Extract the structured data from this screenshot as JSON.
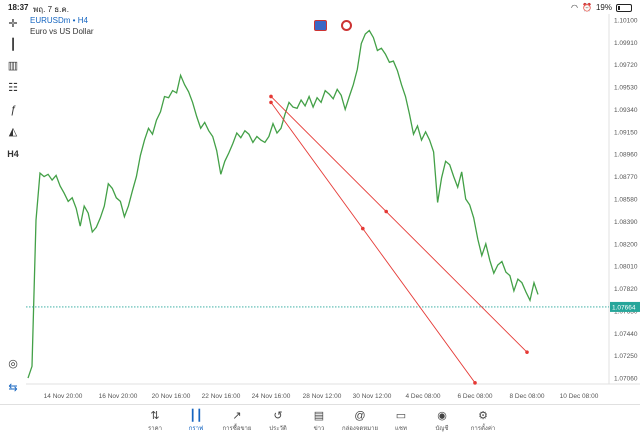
{
  "status": {
    "time": "18:37",
    "date": "พฤ. 7 ธ.ค.",
    "battery": "19%"
  },
  "toolbar": {
    "timeframe": "H4"
  },
  "symbol": {
    "name": "EURUSDm • H4",
    "description": "Euro vs US Dollar"
  },
  "current_price": "1.07664",
  "chart_data": {
    "type": "line",
    "x_labels": [
      "14 Nov 20:00",
      "16 Nov 20:00",
      "20 Nov 16:00",
      "22 Nov 16:00",
      "24 Nov 16:00",
      "28 Nov 12:00",
      "30 Nov 12:00",
      "4 Dec 08:00",
      "6 Dec 08:00",
      "8 Dec 08:00",
      "10 Dec 08:00"
    ],
    "y_ticks": [
      1.101,
      1.0991,
      1.0972,
      1.0953,
      1.0934,
      1.0915,
      1.0896,
      1.0877,
      1.0858,
      1.0839,
      1.082,
      1.0801,
      1.0782,
      1.0763,
      1.0744,
      1.0725,
      1.0706
    ],
    "ylim": [
      1.0701,
      1.1015
    ],
    "series": [
      {
        "values": [
          1.0706,
          1.0716,
          1.084,
          1.088,
          1.0877,
          1.0879,
          1.0874,
          1.0878,
          1.0869,
          1.0863,
          1.0856,
          1.0859,
          1.085,
          1.0835,
          1.0852,
          1.0846,
          1.083,
          1.0834,
          1.0842,
          1.0852,
          1.0871,
          1.0867,
          1.0859,
          1.0856,
          1.0843,
          1.0852,
          1.0865,
          1.0877,
          1.0895,
          1.0908,
          1.0918,
          1.0913,
          1.0925,
          1.0932,
          1.0945,
          1.0944,
          1.095,
          1.0948,
          1.0963,
          1.0955,
          1.0949,
          1.094,
          1.0928,
          1.0918,
          1.0923,
          1.0916,
          1.0911,
          1.0899,
          1.0879,
          1.089,
          1.0897,
          1.0905,
          1.0914,
          1.091,
          1.0916,
          1.0913,
          1.0906,
          1.0911,
          1.0908,
          1.0906,
          1.0911,
          1.0922,
          1.0914,
          1.0918,
          1.093,
          1.094,
          1.0936,
          1.0935,
          1.0942,
          1.0937,
          1.0945,
          1.0936,
          1.0944,
          1.094,
          1.095,
          1.0947,
          1.0943,
          1.0951,
          1.0946,
          1.0934,
          1.0945,
          1.0955,
          1.0968,
          1.099,
          1.0998,
          1.1001,
          1.0995,
          1.0984,
          1.0986,
          1.0981,
          1.0974,
          1.0975,
          1.0967,
          1.0955,
          1.0945,
          1.093,
          1.0913,
          1.092,
          1.0908,
          1.0915,
          1.0908,
          1.0898,
          1.0855,
          1.0876,
          1.089,
          1.0887,
          1.0877,
          1.0868,
          1.0881,
          1.0858,
          1.0853,
          1.0842,
          1.0824,
          1.081,
          1.082,
          1.0806,
          1.0795,
          1.0802,
          1.0805,
          1.0796,
          1.0793,
          1.078,
          1.079,
          1.0787,
          1.0779,
          1.0772,
          1.0787,
          1.0777
        ]
      }
    ],
    "drawings": [
      {
        "type": "line",
        "color": "#e53935",
        "points": [
          [
            "24 Nov 16:00",
            1.094
          ],
          [
            "6 Dec 08:00",
            1.0702
          ]
        ]
      },
      {
        "type": "line",
        "color": "#e53935",
        "points": [
          [
            "24 Nov 16:00",
            1.0945
          ],
          [
            "8 Dec 08:00",
            1.0728
          ]
        ]
      }
    ],
    "current_price_line": 1.07664,
    "current_price_color": "#26a69a",
    "line_color": "#43a047"
  },
  "nav": [
    {
      "label": "ราคา",
      "icon": "arrows-updown-icon"
    },
    {
      "label": "กราฟ",
      "icon": "candles-icon"
    },
    {
      "label": "การซื้อขาย",
      "icon": "trend-icon"
    },
    {
      "label": "ประวัติ",
      "icon": "history-icon"
    },
    {
      "label": "ข่าว",
      "icon": "news-icon"
    },
    {
      "label": "กล่องจดหมาย",
      "icon": "at-icon"
    },
    {
      "label": "แชท",
      "icon": "chat-icon"
    },
    {
      "label": "บัญชี",
      "icon": "user-icon"
    },
    {
      "label": "การตั้งค่า",
      "icon": "gear-icon"
    }
  ]
}
